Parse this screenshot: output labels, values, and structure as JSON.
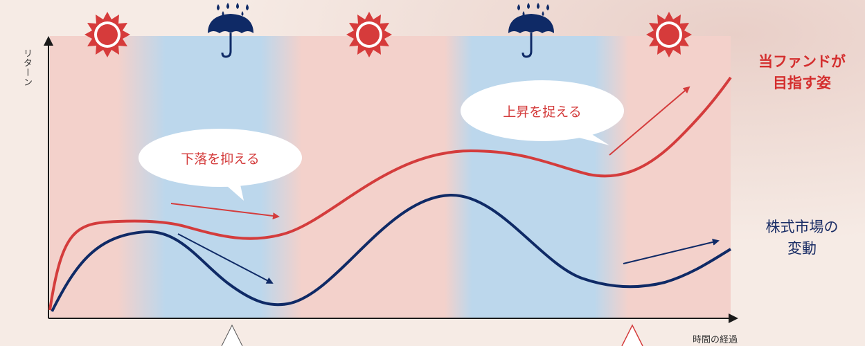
{
  "axes": {
    "y_label": "リターン",
    "x_label": "時間の経過"
  },
  "bubbles": {
    "fall": "下落を抑える",
    "rise": "上昇を捉える"
  },
  "legend": {
    "fund_line1": "当ファンドが",
    "fund_line2": "目指す姿",
    "market_line1": "株式市場の",
    "market_line2": "変動"
  },
  "colors": {
    "fund": "#d43c3c",
    "market": "#0f2a66",
    "sun": "#d63b3b",
    "umbrella": "#0f2a66",
    "pink_band": "#f3d1cb",
    "blue_band": "#bcd7ec"
  },
  "icons": [
    "sun-icon",
    "umbrella-rain-icon",
    "sun-icon",
    "umbrella-rain-icon",
    "sun-icon"
  ]
}
